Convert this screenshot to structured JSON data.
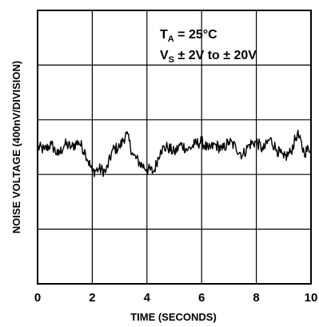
{
  "chart_data": {
    "type": "line",
    "xlabel": "TIME (SECONDS)",
    "ylabel": "NOISE VOLTAGE (400nV/DIVISION)",
    "xlim": [
      0,
      10
    ],
    "ylim": [
      -2,
      3
    ],
    "x_ticks": [
      "0",
      "2",
      "4",
      "6",
      "8",
      "10"
    ],
    "grid": true,
    "annotation": {
      "line1_main": "T",
      "line1_sub": "A",
      "line1_rest": " = 25°C",
      "line2_main": "V",
      "line2_sub": "S",
      "line2_rest": " ± 2V to  ± 20V"
    },
    "series": [
      {
        "x": [
          0,
          0.25,
          0.5,
          0.75,
          1.0,
          1.25,
          1.5,
          1.75,
          2.0,
          2.25,
          2.5,
          2.75,
          3.0,
          3.25,
          3.5,
          3.75,
          4.0,
          4.25,
          4.5,
          4.75,
          5.0,
          5.25,
          5.5,
          5.75,
          6.0,
          6.25,
          6.5,
          6.75,
          7.0,
          7.25,
          7.5,
          7.75,
          8.0,
          8.25,
          8.5,
          8.75,
          9.0,
          9.25,
          9.5,
          9.75,
          10.0
        ],
        "values": [
          0.5,
          0.45,
          0.55,
          0.35,
          0.55,
          0.5,
          0.6,
          0.4,
          0.05,
          0.1,
          0.05,
          0.45,
          0.5,
          0.75,
          0.35,
          0.2,
          0.1,
          0.05,
          0.45,
          0.5,
          0.4,
          0.55,
          0.45,
          0.55,
          0.6,
          0.45,
          0.55,
          0.45,
          0.6,
          0.5,
          0.35,
          0.55,
          0.6,
          0.45,
          0.65,
          0.45,
          0.3,
          0.4,
          0.75,
          0.4,
          0.5
        ]
      }
    ]
  }
}
